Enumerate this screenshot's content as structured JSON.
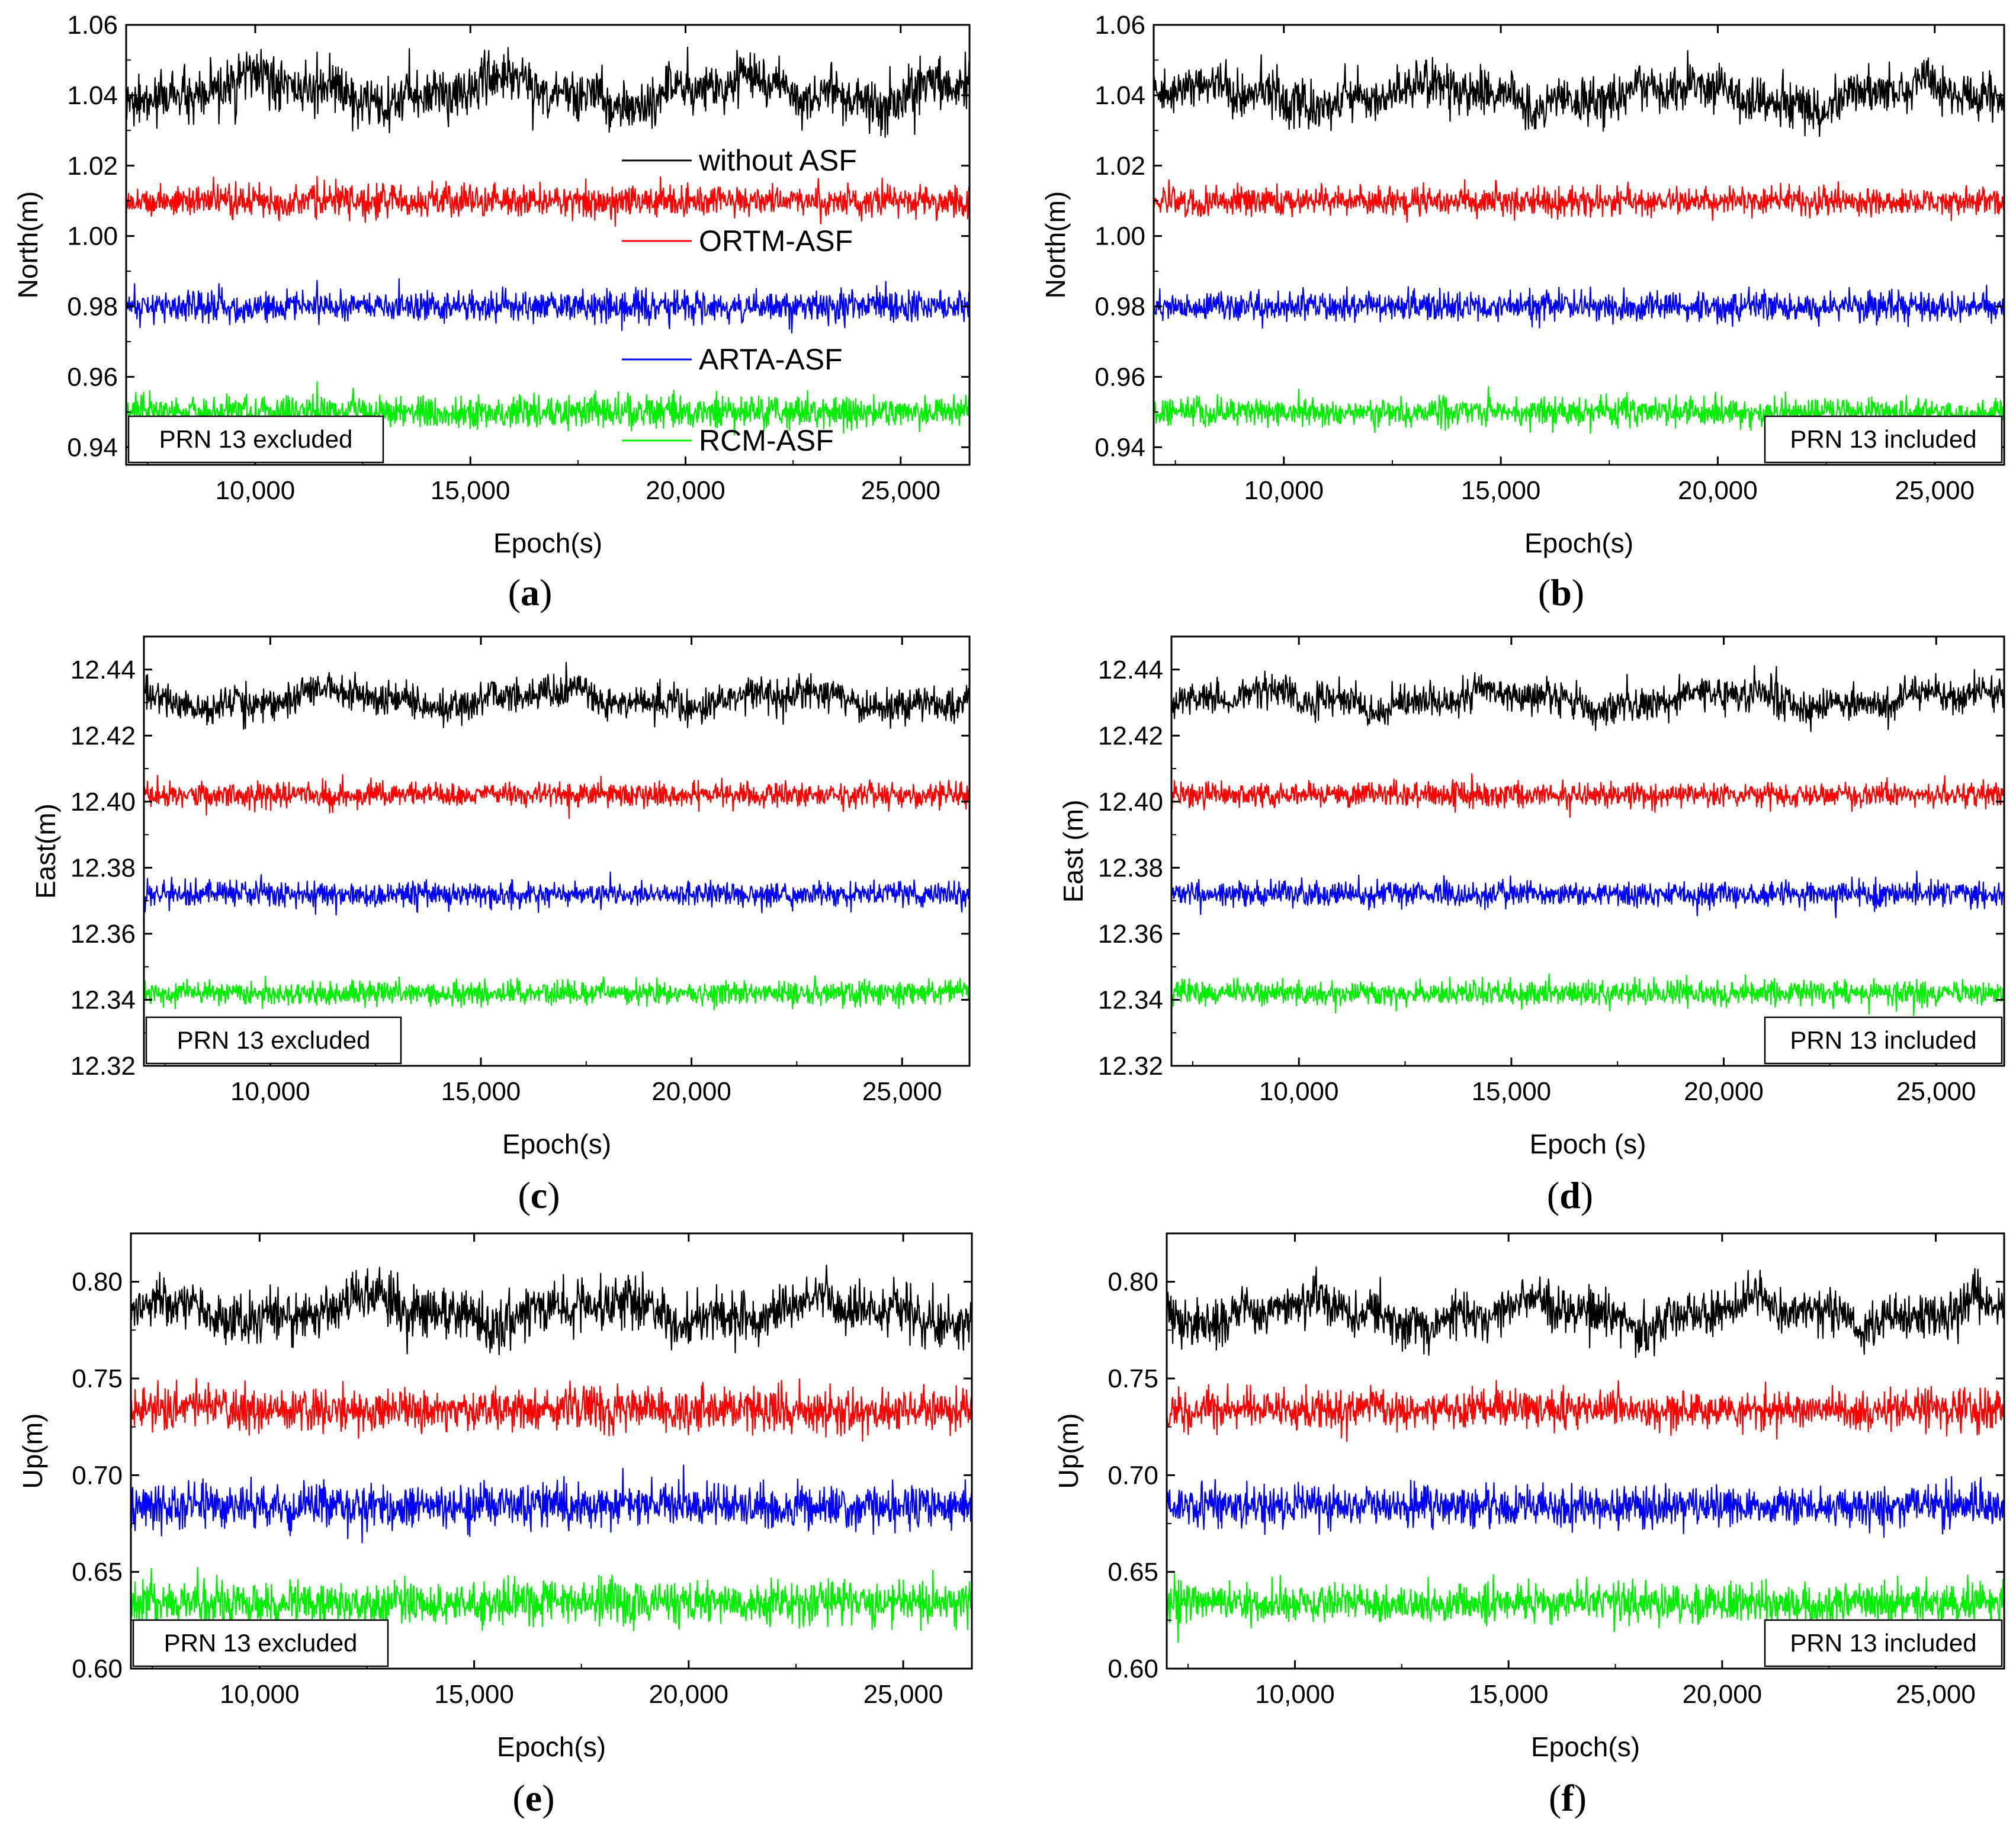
{
  "colors": {
    "without": "#000000",
    "ortm": "#ff0000",
    "arta": "#0000ff",
    "rcm": "#00ee00"
  },
  "legend": [
    "without ASF",
    "ORTM-ASF",
    "ARTA-ASF",
    "RCM-ASF"
  ],
  "chart_data": [
    {
      "panel": "a",
      "type": "line",
      "xlabel": "Epoch(s)",
      "ylabel": "North(m)",
      "xlim": [
        7000,
        26600
      ],
      "xticks": [
        10000,
        15000,
        20000,
        25000
      ],
      "xticklabels": [
        "10,000",
        "15,000",
        "20,000",
        "25,000"
      ],
      "ylim": [
        0.935,
        1.06
      ],
      "yticks": [
        0.94,
        0.96,
        0.98,
        1.0,
        1.02,
        1.04,
        1.06
      ],
      "yticklabels": [
        "0.94",
        "0.96",
        "0.98",
        "1.00",
        "1.02",
        "1.04",
        "1.06"
      ],
      "note": "PRN 13 excluded",
      "show_legend": true,
      "series": [
        {
          "name": "without ASF",
          "mean": 1.041,
          "noise": 0.0035,
          "wander": 0.006
        },
        {
          "name": "ORTM-ASF",
          "mean": 1.01,
          "noise": 0.0022,
          "wander": 0.0
        },
        {
          "name": "ARTA-ASF",
          "mean": 0.98,
          "noise": 0.0022,
          "wander": 0.0
        },
        {
          "name": "RCM-ASF",
          "mean": 0.95,
          "noise": 0.0022,
          "wander": 0.0
        }
      ]
    },
    {
      "panel": "b",
      "type": "line",
      "xlabel": "Epoch(s)",
      "ylabel": "North(m)",
      "xlim": [
        7000,
        26600
      ],
      "xticks": [
        10000,
        15000,
        20000,
        25000
      ],
      "xticklabels": [
        "10,000",
        "15,000",
        "20,000",
        "25,000"
      ],
      "ylim": [
        0.935,
        1.06
      ],
      "yticks": [
        0.94,
        0.96,
        0.98,
        1.0,
        1.02,
        1.04,
        1.06
      ],
      "yticklabels": [
        "0.94",
        "0.96",
        "0.98",
        "1.00",
        "1.02",
        "1.04",
        "1.06"
      ],
      "note": "PRN 13 included",
      "show_legend": false,
      "series": [
        {
          "name": "without ASF",
          "mean": 1.04,
          "noise": 0.0032,
          "wander": 0.005
        },
        {
          "name": "ORTM-ASF",
          "mean": 1.01,
          "noise": 0.002,
          "wander": 0.0
        },
        {
          "name": "ARTA-ASF",
          "mean": 0.98,
          "noise": 0.002,
          "wander": 0.0
        },
        {
          "name": "RCM-ASF",
          "mean": 0.95,
          "noise": 0.002,
          "wander": 0.0
        }
      ]
    },
    {
      "panel": "c",
      "type": "line",
      "xlabel": "Epoch(s)",
      "ylabel": "East(m)",
      "xlim": [
        7000,
        26600
      ],
      "xticks": [
        10000,
        15000,
        20000,
        25000
      ],
      "xticklabels": [
        "10,000",
        "15,000",
        "20,000",
        "25,000"
      ],
      "ylim": [
        12.32,
        12.45
      ],
      "yticks": [
        12.32,
        12.34,
        12.36,
        12.38,
        12.4,
        12.42,
        12.44
      ],
      "yticklabels": [
        "12.32",
        "12.34",
        "12.36",
        "12.38",
        "12.40",
        "12.42",
        "12.44"
      ],
      "note": "PRN 13 excluded",
      "show_legend": false,
      "series": [
        {
          "name": "without ASF",
          "mean": 12.431,
          "noise": 0.0025,
          "wander": 0.004
        },
        {
          "name": "ORTM-ASF",
          "mean": 12.402,
          "noise": 0.0018,
          "wander": 0.0
        },
        {
          "name": "ARTA-ASF",
          "mean": 12.372,
          "noise": 0.0018,
          "wander": 0.0
        },
        {
          "name": "RCM-ASF",
          "mean": 12.342,
          "noise": 0.0018,
          "wander": 0.0
        }
      ]
    },
    {
      "panel": "d",
      "type": "line",
      "xlabel": "Epoch (s)",
      "ylabel": "East (m)",
      "xlim": [
        7000,
        26600
      ],
      "xticks": [
        10000,
        15000,
        20000,
        25000
      ],
      "xticklabels": [
        "10,000",
        "15,000",
        "20,000",
        "25,000"
      ],
      "ylim": [
        12.32,
        12.45
      ],
      "yticks": [
        12.32,
        12.34,
        12.36,
        12.38,
        12.4,
        12.42,
        12.44
      ],
      "yticklabels": [
        "12.32",
        "12.34",
        "12.36",
        "12.38",
        "12.40",
        "12.42",
        "12.44"
      ],
      "note": "PRN 13 included",
      "show_legend": false,
      "series": [
        {
          "name": "without ASF",
          "mean": 12.431,
          "noise": 0.0025,
          "wander": 0.004
        },
        {
          "name": "ORTM-ASF",
          "mean": 12.402,
          "noise": 0.0018,
          "wander": 0.0
        },
        {
          "name": "ARTA-ASF",
          "mean": 12.372,
          "noise": 0.0018,
          "wander": 0.0
        },
        {
          "name": "RCM-ASF",
          "mean": 12.342,
          "noise": 0.0018,
          "wander": 0.0
        }
      ]
    },
    {
      "panel": "e",
      "type": "line",
      "xlabel": "Epoch(s)",
      "ylabel": "Up(m)",
      "xlim": [
        7000,
        26600
      ],
      "xticks": [
        10000,
        15000,
        20000,
        25000
      ],
      "xticklabels": [
        "10,000",
        "15,000",
        "20,000",
        "25,000"
      ],
      "ylim": [
        0.6,
        0.825
      ],
      "yticks": [
        0.6,
        0.65,
        0.7,
        0.75,
        0.8
      ],
      "yticklabels": [
        "0.60",
        "0.65",
        "0.70",
        "0.75",
        "0.80"
      ],
      "note": "PRN 13 excluded",
      "show_legend": false,
      "series": [
        {
          "name": "without ASF",
          "mean": 0.785,
          "noise": 0.0065,
          "wander": 0.01
        },
        {
          "name": "ORTM-ASF",
          "mean": 0.734,
          "noise": 0.0055,
          "wander": 0.0
        },
        {
          "name": "ARTA-ASF",
          "mean": 0.684,
          "noise": 0.0055,
          "wander": 0.0
        },
        {
          "name": "RCM-ASF",
          "mean": 0.634,
          "noise": 0.0055,
          "wander": 0.0
        }
      ]
    },
    {
      "panel": "f",
      "type": "line",
      "xlabel": "Epoch(s)",
      "ylabel": "Up(m)",
      "xlim": [
        7000,
        26600
      ],
      "xticks": [
        10000,
        15000,
        20000,
        25000
      ],
      "xticklabels": [
        "10,000",
        "15,000",
        "20,000",
        "25,000"
      ],
      "ylim": [
        0.6,
        0.825
      ],
      "yticks": [
        0.6,
        0.65,
        0.7,
        0.75,
        0.8
      ],
      "yticklabels": [
        "0.60",
        "0.65",
        "0.70",
        "0.75",
        "0.80"
      ],
      "note": "PRN 13 included",
      "show_legend": false,
      "series": [
        {
          "name": "without ASF",
          "mean": 0.784,
          "noise": 0.006,
          "wander": 0.009
        },
        {
          "name": "ORTM-ASF",
          "mean": 0.734,
          "noise": 0.005,
          "wander": 0.0
        },
        {
          "name": "ARTA-ASF",
          "mean": 0.684,
          "noise": 0.005,
          "wander": 0.0
        },
        {
          "name": "RCM-ASF",
          "mean": 0.634,
          "noise": 0.005,
          "wander": 0.0
        }
      ]
    }
  ]
}
